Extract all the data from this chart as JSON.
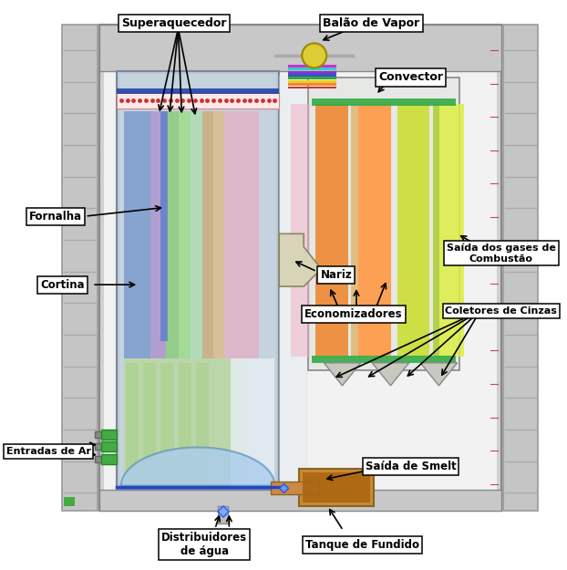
{
  "bg": "#ffffff",
  "labels": {
    "superaquecedor": "Superaquecedor",
    "balao_vapor": "Balão de Vapor",
    "convector": "Convector",
    "saida_gases": "Saída dos gases de\nCombustão",
    "coletores": "Coletores de Cinzas",
    "economizadores": "Economizadores",
    "nariz": "Nariz",
    "cortina": "Cortina",
    "fornalha": "Fornalha",
    "entradas_ar": "Entradas de Ar",
    "saida_smelt": "Saída de Smelt",
    "distribuidores": "Distribuidores\nde água",
    "tanque": "Tanque de Fundido"
  },
  "scaffold_color": "#c8c8c8",
  "scaffold_line": "#aaaaaa",
  "wall_color": "#d0d0d0",
  "inner_bg": "#f5f5f5",
  "furnace_stripes_upper": [
    "#6688bb",
    "#7799cc",
    "#88aadd",
    "#ccaa88",
    "#ddbb99",
    "#c8a870",
    "#aa99dd",
    "#bb99ee",
    "#cc9977",
    "#99bb77",
    "#aaccaa"
  ],
  "furnace_stripes_lower": [
    "#88cc66",
    "#99dd77",
    "#aaddaa",
    "#ccdd88",
    "#ddee99"
  ],
  "conv_panels_left": [
    "#ee8844",
    "#ff9955",
    "#dd7733"
  ],
  "conv_panels_right": [
    "#cccc44",
    "#dddd55",
    "#eeee66",
    "#bbbb33"
  ],
  "nose_color": "#ccccaa",
  "dome_color": "#aaccee",
  "drum_color": "#ddcc33"
}
